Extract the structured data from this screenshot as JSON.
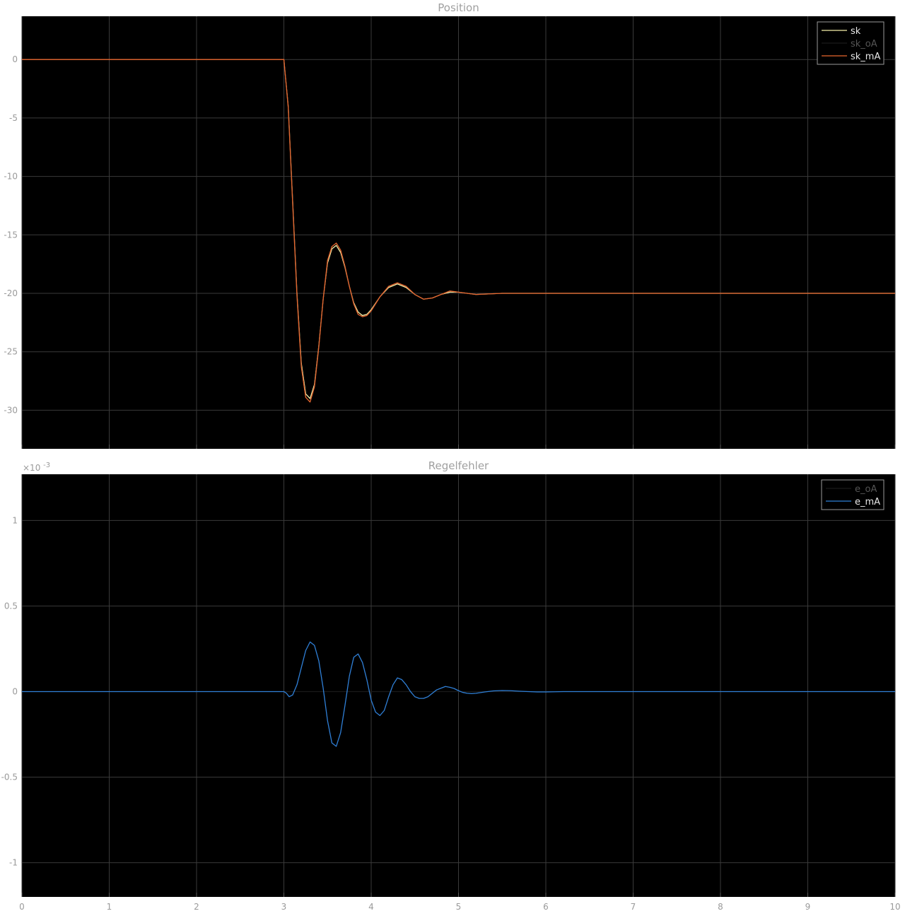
{
  "colors": {
    "background": "#000000",
    "page": "#ffffff",
    "grid": "#3a3a3a",
    "tick_label": "#9a9a9a",
    "title": "#a0a0a0",
    "legend_border": "#9a9a9a"
  },
  "chart_data": [
    {
      "type": "line",
      "title": "Position",
      "xlabel": "",
      "ylabel": "",
      "xlim": [
        0,
        10
      ],
      "ylim": [
        -33.3,
        3.7
      ],
      "grid": true,
      "legend_position": "top-right",
      "x_ticks": [
        0,
        1,
        2,
        3,
        4,
        5,
        6,
        7,
        8,
        9,
        10
      ],
      "x_tick_labels": [
        "",
        "",
        "",
        "",
        "",
        "",
        "",
        "",
        "",
        "",
        ""
      ],
      "y_ticks": [
        0,
        -5,
        -10,
        -15,
        -20,
        -25,
        -30
      ],
      "y_tick_labels": [
        "0",
        "-5",
        "-10",
        "-15",
        "-20",
        "-25",
        "-30"
      ],
      "series": [
        {
          "name": "sk",
          "color": "#f5f0a8",
          "x": [
            0,
            3.0,
            3.05,
            3.1,
            3.15,
            3.2,
            3.25,
            3.3,
            3.35,
            3.4,
            3.45,
            3.5,
            3.55,
            3.6,
            3.65,
            3.7,
            3.75,
            3.8,
            3.85,
            3.9,
            3.95,
            4.0,
            4.1,
            4.2,
            4.3,
            4.4,
            4.5,
            4.6,
            4.7,
            4.8,
            4.9,
            5.0,
            5.2,
            5.5,
            6.0,
            10.0
          ],
          "y": [
            0,
            0,
            -4,
            -12,
            -20,
            -26,
            -28.6,
            -29.0,
            -27.8,
            -24.5,
            -20.5,
            -17.4,
            -16.2,
            -15.9,
            -16.5,
            -17.8,
            -19.4,
            -20.8,
            -21.6,
            -21.9,
            -21.8,
            -21.4,
            -20.3,
            -19.5,
            -19.2,
            -19.5,
            -20.1,
            -20.5,
            -20.4,
            -20.1,
            -19.9,
            -19.9,
            -20.1,
            -20.0,
            -20.0,
            -20.0
          ]
        },
        {
          "name": "sk_oA",
          "color": "#1a1a1a",
          "x": [
            0,
            3.0,
            3.05,
            3.1,
            3.15,
            3.2,
            3.25,
            3.3,
            3.35,
            3.4,
            3.45,
            3.5,
            3.55,
            3.6,
            3.65,
            3.7,
            3.75,
            3.8,
            3.85,
            3.9,
            3.95,
            4.0,
            4.1,
            4.2,
            4.3,
            4.4,
            4.5,
            4.6,
            4.7,
            4.8,
            4.9,
            5.0,
            5.2,
            5.5,
            6.0,
            10.0
          ],
          "y": [
            0,
            0,
            -4.1,
            -12.2,
            -20.2,
            -26.3,
            -28.9,
            -29.3,
            -28.0,
            -24.6,
            -20.5,
            -17.2,
            -16.0,
            -15.7,
            -16.3,
            -17.7,
            -19.4,
            -20.9,
            -21.8,
            -22.0,
            -21.9,
            -21.5,
            -20.3,
            -19.4,
            -19.1,
            -19.4,
            -20.1,
            -20.5,
            -20.4,
            -20.1,
            -19.8,
            -19.9,
            -20.1,
            -20.0,
            -20.0,
            -20.0
          ]
        },
        {
          "name": "sk_mA",
          "color": "#e8662e",
          "x": [
            0,
            3.0,
            3.05,
            3.1,
            3.15,
            3.2,
            3.25,
            3.3,
            3.35,
            3.4,
            3.45,
            3.5,
            3.55,
            3.6,
            3.65,
            3.7,
            3.75,
            3.8,
            3.85,
            3.9,
            3.95,
            4.0,
            4.1,
            4.2,
            4.3,
            4.4,
            4.5,
            4.6,
            4.7,
            4.8,
            4.9,
            5.0,
            5.2,
            5.5,
            6.0,
            10.0
          ],
          "y": [
            0,
            0,
            -4.1,
            -12.2,
            -20.2,
            -26.3,
            -28.9,
            -29.3,
            -28.0,
            -24.6,
            -20.5,
            -17.2,
            -16.0,
            -15.7,
            -16.3,
            -17.7,
            -19.4,
            -20.9,
            -21.8,
            -22.0,
            -21.9,
            -21.5,
            -20.3,
            -19.4,
            -19.1,
            -19.4,
            -20.1,
            -20.5,
            -20.4,
            -20.1,
            -19.8,
            -19.9,
            -20.1,
            -20.0,
            -20.0,
            -20.0
          ]
        }
      ]
    },
    {
      "type": "line",
      "title": "Regelfehler",
      "xlabel": "",
      "ylabel": "",
      "y_exponent_label": "×10",
      "y_exponent": "-3",
      "xlim": [
        0,
        10
      ],
      "ylim": [
        -1.2,
        1.27
      ],
      "grid": true,
      "legend_position": "top-right",
      "x_ticks": [
        0,
        1,
        2,
        3,
        4,
        5,
        6,
        7,
        8,
        9,
        10
      ],
      "x_tick_labels": [
        "0",
        "1",
        "2",
        "3",
        "4",
        "5",
        "6",
        "7",
        "8",
        "9",
        "10"
      ],
      "y_ticks": [
        1,
        0.5,
        0,
        -0.5,
        -1
      ],
      "y_tick_labels": [
        "1",
        "0.5",
        "0",
        "-0.5",
        "-1"
      ],
      "series": [
        {
          "name": "e_oA",
          "color": "#1a1a1a",
          "x": [
            0,
            10
          ],
          "y": [
            0,
            0
          ]
        },
        {
          "name": "e_mA",
          "color": "#2f7fd6",
          "x": [
            0,
            3.0,
            3.03,
            3.06,
            3.1,
            3.15,
            3.2,
            3.25,
            3.3,
            3.35,
            3.4,
            3.45,
            3.5,
            3.55,
            3.6,
            3.65,
            3.7,
            3.75,
            3.8,
            3.85,
            3.9,
            3.95,
            4.0,
            4.05,
            4.1,
            4.15,
            4.2,
            4.25,
            4.3,
            4.35,
            4.4,
            4.45,
            4.5,
            4.55,
            4.6,
            4.65,
            4.7,
            4.75,
            4.8,
            4.85,
            4.9,
            4.95,
            5.0,
            5.05,
            5.1,
            5.15,
            5.2,
            5.3,
            5.4,
            5.5,
            5.6,
            5.7,
            5.8,
            5.9,
            6.0,
            6.1,
            6.2,
            6.3,
            6.5,
            10.0
          ],
          "y": [
            0,
            0,
            -0.01,
            -0.03,
            -0.02,
            0.04,
            0.14,
            0.24,
            0.29,
            0.27,
            0.18,
            0.02,
            -0.17,
            -0.3,
            -0.32,
            -0.24,
            -0.08,
            0.09,
            0.2,
            0.22,
            0.17,
            0.07,
            -0.05,
            -0.12,
            -0.14,
            -0.11,
            -0.03,
            0.04,
            0.08,
            0.07,
            0.04,
            0.0,
            -0.03,
            -0.04,
            -0.04,
            -0.03,
            -0.01,
            0.01,
            0.02,
            0.03,
            0.025,
            0.018,
            0.005,
            -0.005,
            -0.01,
            -0.012,
            -0.01,
            -0.002,
            0.004,
            0.006,
            0.005,
            0.002,
            0.0,
            -0.002,
            -0.002,
            -0.001,
            0.0,
            0.0,
            0.0,
            0.0
          ]
        }
      ]
    }
  ]
}
